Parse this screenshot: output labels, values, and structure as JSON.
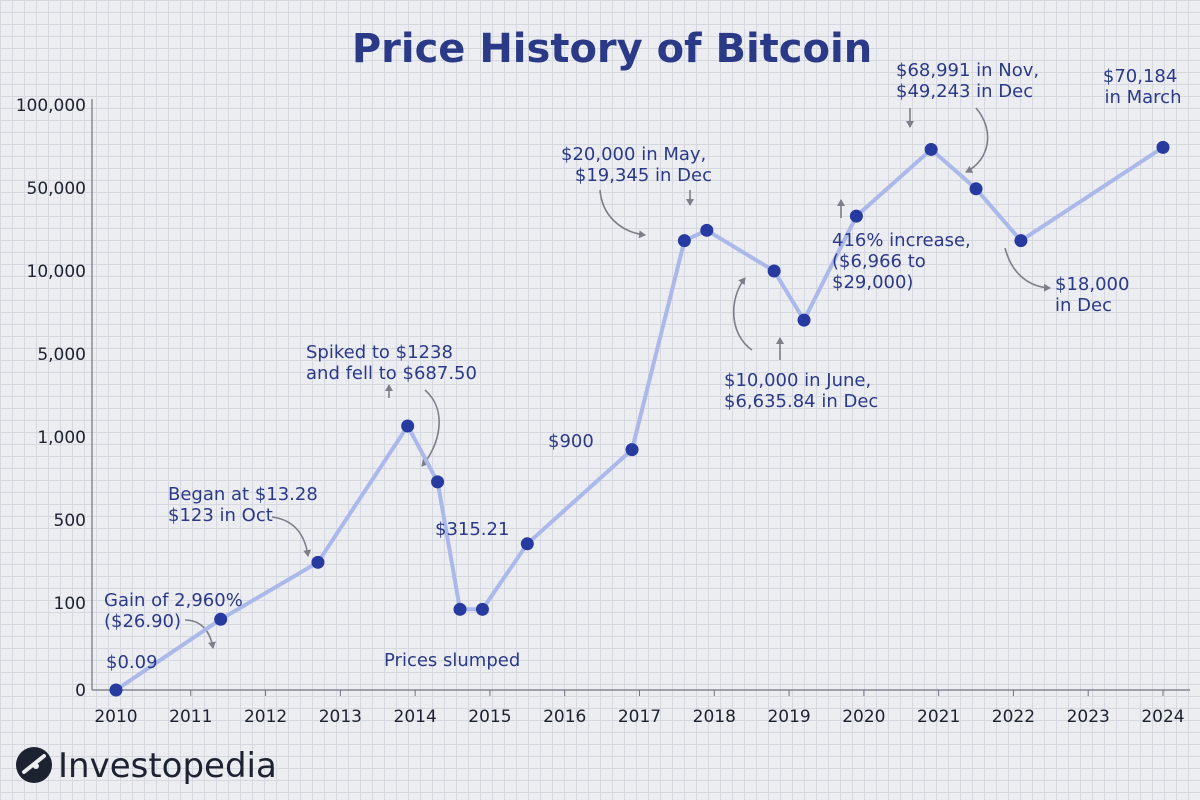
{
  "chart_data": {
    "type": "line",
    "title": "Price History of Bitcoin",
    "xlabel": "",
    "ylabel": "",
    "y_scale": "log (uneven ticks)",
    "grid": true,
    "y_ticks": [
      "0",
      "100",
      "500",
      "1,000",
      "5,000",
      "10,000",
      "50,000",
      "100,000"
    ],
    "x_ticks": [
      "2010",
      "2011",
      "2012",
      "2013",
      "2014",
      "2015",
      "2016",
      "2017",
      "2018",
      "2019",
      "2020",
      "2021",
      "2022",
      "2023",
      "2024"
    ],
    "series": [
      {
        "color": "#aab8ea",
        "marker_color": "#263aa0",
        "points": [
          {
            "x": 2010.0,
            "y": 0.09
          },
          {
            "x": 2011.4,
            "y": 26.9
          },
          {
            "x": 2012.7,
            "y": 220
          },
          {
            "x": 2013.9,
            "y": 1238
          },
          {
            "x": 2014.3,
            "y": 687.5
          },
          {
            "x": 2014.6,
            "y": 60
          },
          {
            "x": 2014.9,
            "y": 60
          },
          {
            "x": 2015.5,
            "y": 315.21
          },
          {
            "x": 2016.9,
            "y": 900
          },
          {
            "x": 2017.6,
            "y": 18000
          },
          {
            "x": 2017.9,
            "y": 22000
          },
          {
            "x": 2018.8,
            "y": 10000
          },
          {
            "x": 2019.2,
            "y": 6635.84
          },
          {
            "x": 2019.9,
            "y": 29000
          },
          {
            "x": 2020.9,
            "y": 68991
          },
          {
            "x": 2021.5,
            "y": 49243
          },
          {
            "x": 2022.1,
            "y": 18000
          },
          {
            "x": 2024.0,
            "y": 70184
          }
        ]
      }
    ],
    "annotations": [
      {
        "lines": [
          "$0.09"
        ]
      },
      {
        "lines": [
          "Gain of 2,960%",
          "($26.90)"
        ]
      },
      {
        "lines": [
          "Began at $13.28",
          "$123 in Oct"
        ]
      },
      {
        "lines": [
          "Spiked to $1238",
          "and fell to $687.50"
        ]
      },
      {
        "lines": [
          "Prices slumped"
        ]
      },
      {
        "lines": [
          "$315.21"
        ]
      },
      {
        "lines": [
          "$900"
        ]
      },
      {
        "lines": [
          "$20,000 in May,",
          "$19,345 in Dec"
        ]
      },
      {
        "lines": [
          "$10,000 in June,",
          "$6,635.84 in Dec"
        ]
      },
      {
        "lines": [
          "416% increase,",
          "($6,966 to",
          "$29,000)"
        ]
      },
      {
        "lines": [
          "$68,991 in Nov,",
          "$49,243 in Dec"
        ]
      },
      {
        "lines": [
          "$18,000",
          "in Dec"
        ]
      },
      {
        "lines": [
          "$70,184",
          "in March"
        ]
      }
    ]
  },
  "brand": {
    "name": "Investopedia",
    "icon": "investopedia-logo-icon"
  }
}
